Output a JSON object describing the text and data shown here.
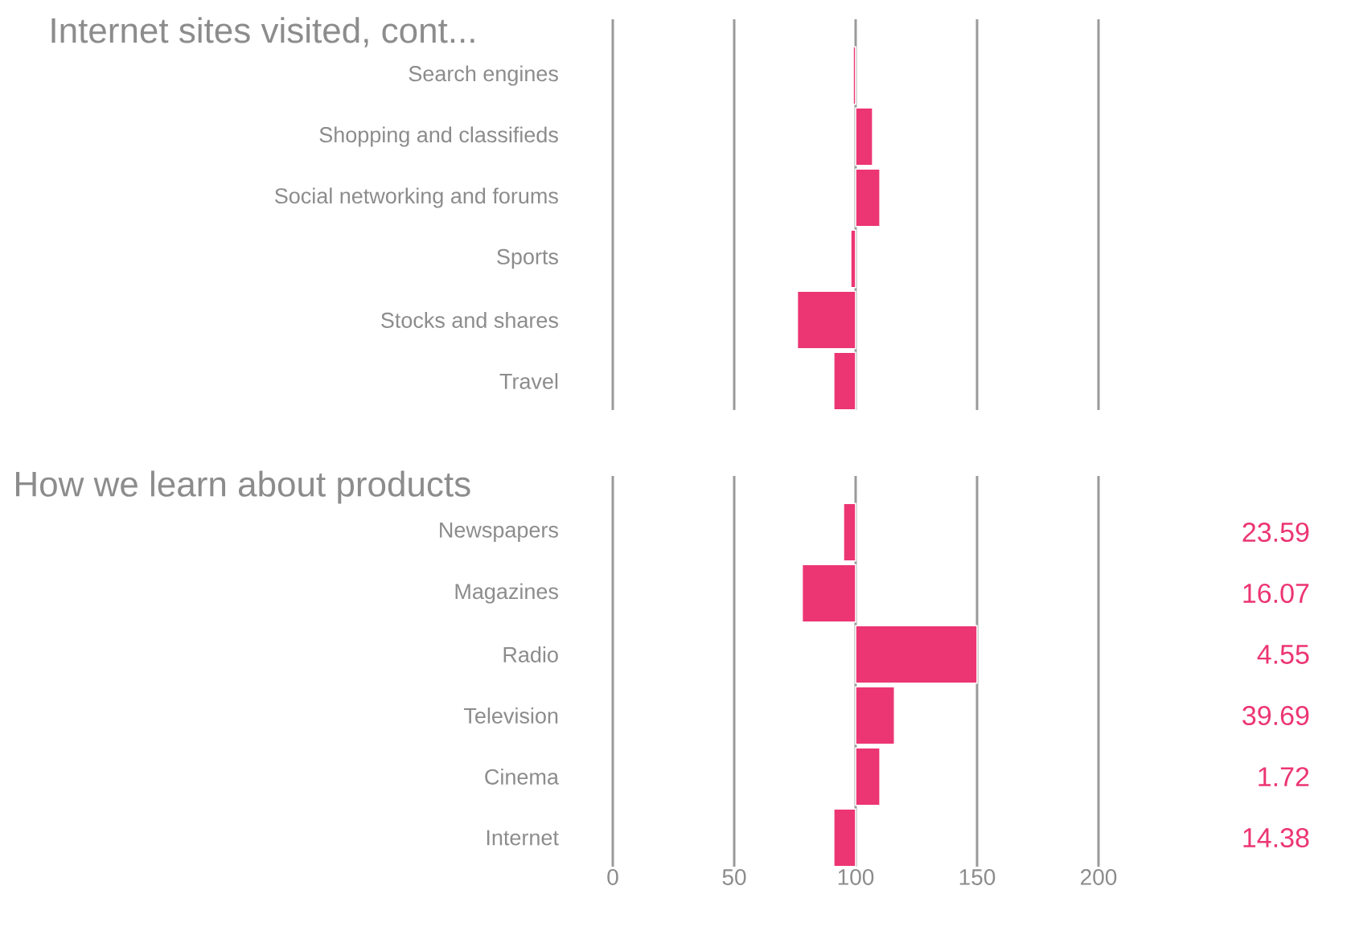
{
  "chart_data": [
    {
      "type": "bar",
      "orientation": "horizontal",
      "title": "Internet sites visited, cont...",
      "categories": [
        "Search engines",
        "Shopping and classifieds",
        "Social networking and forums",
        "Sports",
        "Stocks and shares",
        "Travel"
      ],
      "base": [
        100,
        100,
        100,
        100,
        100,
        100
      ],
      "values": [
        -1,
        7,
        10,
        -2,
        -24,
        -9
      ],
      "color": "#ec3573",
      "xlim": [
        0,
        200
      ],
      "xticks": [
        0,
        50,
        100,
        150,
        200
      ],
      "grid": "x",
      "tick_labels": "y"
    },
    {
      "type": "bar",
      "orientation": "horizontal",
      "title": "How we learn about products",
      "categories": [
        "Newspapers",
        "Magazines",
        "Radio",
        "Television",
        "Cinema",
        "Internet"
      ],
      "base": [
        100,
        100,
        100,
        100,
        100,
        100
      ],
      "values": [
        -5,
        -22,
        50,
        16,
        10,
        -9
      ],
      "color": "#ec3573",
      "xlim": [
        0,
        200
      ],
      "xticks": [
        0,
        50,
        100,
        150,
        200
      ],
      "grid": "x",
      "annotations": [
        "23.59",
        "16.07",
        "4.55",
        "39.69",
        "1.72",
        "14.38"
      ]
    }
  ]
}
